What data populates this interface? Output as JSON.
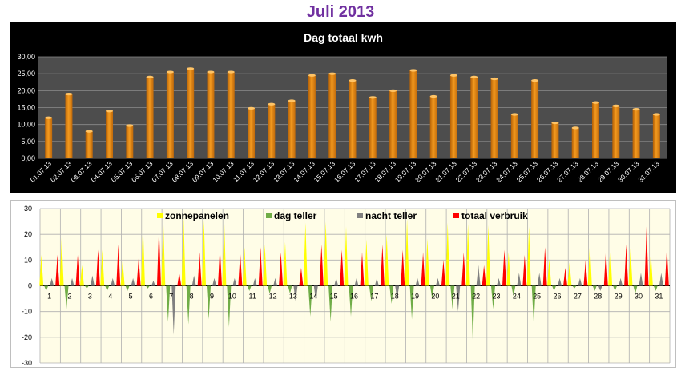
{
  "page_title": "Juli 2013",
  "chart_data": [
    {
      "type": "bar",
      "title": "Dag totaal kwh",
      "categories": [
        "01.07.13",
        "02.07.13",
        "03.07.13",
        "04.07.13",
        "05.07.13",
        "06.07.13",
        "07.07.13",
        "08.07.13",
        "09.07.13",
        "10.07.13",
        "11.07.13",
        "12.07.13",
        "13.07.13",
        "14.07.13",
        "15.07.13",
        "16.07.13",
        "17.07.13",
        "18.07.13",
        "19.07.13",
        "20.07.13",
        "21.07.13",
        "22.07.13",
        "23.07.13",
        "24.07.13",
        "25.07.13",
        "26.07.13",
        "27.07.13",
        "28.07.13",
        "29.07.13",
        "30.07.13",
        "31.07.13"
      ],
      "values": [
        12,
        19,
        8,
        14,
        9.7,
        24,
        25.5,
        26.5,
        25.5,
        25.5,
        14.8,
        16,
        17,
        24.5,
        25,
        23,
        18,
        20,
        26,
        18.3,
        24.5,
        24,
        23.5,
        13,
        23,
        10.5,
        9,
        16.5,
        15.5,
        14.5,
        13
      ],
      "ylim": [
        0,
        30
      ],
      "yticks": [
        "0,00",
        "5,00",
        "10,00",
        "15,00",
        "20,00",
        "25,00",
        "30,00"
      ],
      "grid": true,
      "background": "#000000",
      "plot_background": "#4d4d4d",
      "bar_color": "#f39a1f"
    },
    {
      "type": "area",
      "categories": [
        "1",
        "2",
        "3",
        "4",
        "5",
        "6",
        "7",
        "8",
        "9",
        "10",
        "11",
        "12",
        "13",
        "14",
        "15",
        "16",
        "17",
        "18",
        "19",
        "20",
        "21",
        "22",
        "23",
        "24",
        "25",
        "26",
        "27",
        "28",
        "29",
        "30",
        "31"
      ],
      "ylim": [
        -30,
        30
      ],
      "yticks": [
        "-30",
        "-20",
        "-10",
        "0",
        "10",
        "20",
        "30"
      ],
      "grid": true,
      "legend": "top",
      "plot_background": "#fffde7",
      "series": [
        {
          "name": "zonnepanelen",
          "color": "#ffff00",
          "values": [
            12,
            19,
            8,
            14,
            10,
            24,
            25.5,
            26.5,
            25.5,
            25.5,
            15,
            16,
            17,
            24.5,
            25,
            23,
            18,
            20,
            26,
            18.3,
            24.5,
            24,
            23.5,
            13,
            23,
            10.5,
            9,
            16.5,
            15.5,
            14.5,
            13
          ]
        },
        {
          "name": "dag teller",
          "color": "#70ad47",
          "values": [
            -2,
            -9,
            -1,
            -2,
            -2,
            -1,
            -14,
            -15,
            -13,
            -16,
            -2,
            -3,
            -3,
            -12,
            -14,
            -12,
            -6,
            -7,
            -13,
            -5,
            -9,
            -22,
            -9,
            -4,
            -15,
            -2,
            -1,
            -2,
            -2,
            -3,
            -2
          ]
        },
        {
          "name": "nacht teller",
          "color": "#808080",
          "values": [
            3,
            3,
            4,
            3,
            3,
            2,
            -19,
            4,
            3,
            3,
            3,
            3,
            -6,
            -6,
            3,
            3,
            3,
            -5,
            3,
            3,
            -10,
            8,
            3,
            5,
            5,
            3,
            3,
            -2,
            3,
            5,
            5
          ]
        },
        {
          "name": "totaal verbruik",
          "color": "#ff0000",
          "values": [
            12,
            12,
            14,
            16,
            11,
            23,
            5,
            13,
            15,
            13,
            15,
            13,
            7,
            16,
            14,
            13,
            16,
            14,
            13,
            10,
            13,
            8,
            14,
            12,
            15,
            7,
            10,
            14,
            16,
            23,
            15
          ]
        }
      ]
    }
  ]
}
